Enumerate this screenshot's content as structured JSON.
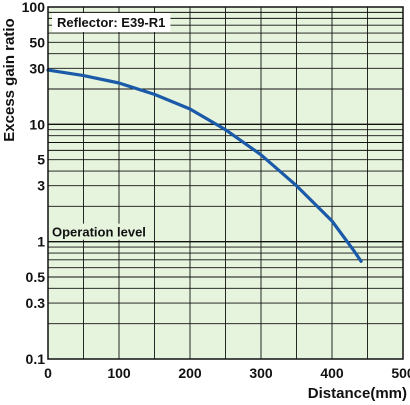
{
  "chart_data": {
    "type": "line",
    "title": "Reflector: E39-R1",
    "xlabel": "Distance(mm)",
    "ylabel": "Excess gain ratio",
    "xlim": [
      0,
      500
    ],
    "ylim": [
      0.1,
      100
    ],
    "y_scale": "log",
    "grid": true,
    "x_ticks": [
      "0",
      "100",
      "200",
      "300",
      "400",
      "500"
    ],
    "y_ticks": [
      {
        "value": 100,
        "label": "100"
      },
      {
        "value": 50,
        "label": "50"
      },
      {
        "value": 30,
        "label": "30"
      },
      {
        "value": 10,
        "label": "10"
      },
      {
        "value": 5,
        "label": "5"
      },
      {
        "value": 3,
        "label": "3"
      },
      {
        "value": 1,
        "label": "1"
      },
      {
        "value": 0.5,
        "label": "0.5"
      },
      {
        "value": 0.3,
        "label": "0.3"
      },
      {
        "value": 0.1,
        "label": "0.1"
      }
    ],
    "annotation": {
      "text": "Operation level",
      "y": 1
    },
    "series": [
      {
        "color": "#1a5aa8",
        "x": [
          0,
          50,
          100,
          150,
          200,
          250,
          300,
          350,
          400,
          430,
          441
        ],
        "y": [
          29,
          26,
          22.5,
          18,
          13.5,
          9,
          5.5,
          3,
          1.5,
          0.85,
          0.68
        ]
      }
    ],
    "colors": {
      "plot_bg": "#e6f3dd",
      "grid": "#111111",
      "frame": "#111111",
      "line": "#1a5aa8"
    }
  }
}
